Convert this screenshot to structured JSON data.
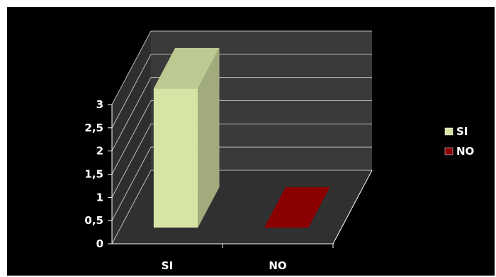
{
  "chart_data": {
    "type": "bar",
    "categories": [
      "SI",
      "NO"
    ],
    "series": [
      {
        "name": "SI",
        "values": [
          3,
          null
        ],
        "color": "#d6e4a5"
      },
      {
        "name": "NO",
        "values": [
          null,
          0
        ],
        "color": "#8b0000"
      }
    ],
    "ylim": [
      0,
      3
    ],
    "yticks": [
      "0",
      "0,5",
      "1",
      "1,5",
      "2",
      "2,5",
      "3"
    ],
    "grid": true,
    "legend_position": "right",
    "background": "#000000",
    "wall_color": "#3a3a3a",
    "floor_color": "#333333",
    "text_color": "#ffffff"
  }
}
